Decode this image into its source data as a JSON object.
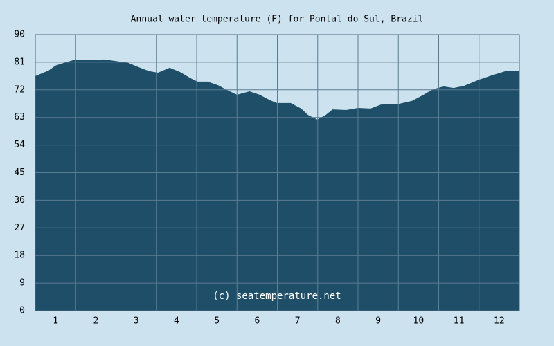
{
  "chart_data": {
    "type": "area",
    "title": "Annual water temperature (F) for Pontal do Sul, Brazil",
    "watermark": "(c) seatemperature.net",
    "color": "#1f4e68",
    "grid": true,
    "x": [
      0.5,
      0.83,
      1.0,
      1.26,
      1.5,
      1.86,
      2.2,
      2.49,
      2.8,
      3.06,
      3.32,
      3.54,
      3.83,
      4.09,
      4.35,
      4.52,
      4.77,
      5.03,
      5.29,
      5.5,
      5.81,
      6.06,
      6.32,
      6.49,
      6.83,
      7.09,
      7.26,
      7.49,
      7.7,
      7.87,
      8.21,
      8.5,
      8.81,
      9.07,
      9.5,
      9.84,
      10.1,
      10.36,
      10.62,
      10.87,
      11.13,
      11.5,
      11.81,
      12.16,
      12.5
    ],
    "values": [
      76.5,
      78.3,
      79.9,
      81.0,
      81.9,
      81.7,
      81.9,
      81.4,
      80.8,
      79.4,
      78.1,
      77.6,
      79.2,
      77.8,
      75.8,
      74.7,
      74.7,
      73.5,
      71.7,
      70.4,
      71.5,
      70.4,
      68.6,
      67.7,
      67.7,
      65.9,
      63.8,
      62.3,
      63.8,
      65.6,
      65.4,
      66.1,
      65.9,
      67.2,
      67.4,
      68.4,
      70.2,
      72.2,
      73.1,
      72.6,
      73.3,
      75.3,
      76.7,
      78.1,
      78.1
    ],
    "xlim": [
      0.5,
      12.5
    ],
    "xticks": [
      1,
      2,
      3,
      4,
      5,
      6,
      7,
      8,
      9,
      10,
      11,
      12
    ],
    "ylim": [
      0,
      90
    ],
    "yticks": [
      0,
      9,
      18,
      27,
      36,
      45,
      54,
      63,
      72,
      81,
      90
    ]
  }
}
